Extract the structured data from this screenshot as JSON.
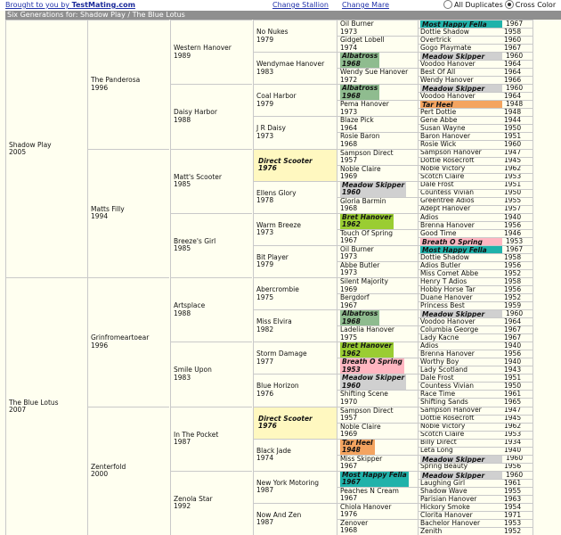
{
  "header": {
    "brand_prefix": "Brought to you by ",
    "brand_name": "TestMating.com",
    "change_stallion": "Change Stallion",
    "change_mare": "Change Mare",
    "opt_all_dupes": "All Duplicates",
    "opt_cross_color": "Cross Color",
    "title": "Six Generations for: Shadow Play / The Blue Lotus"
  },
  "gen1": [
    {
      "name": "Shadow Play",
      "year": "2005"
    },
    {
      "name": "The Blue Lotus",
      "year": "2007"
    }
  ],
  "gen2": [
    {
      "name": "The Panderosa",
      "year": "1996"
    },
    {
      "name": "Matts Filly",
      "year": "1994"
    },
    {
      "name": "Grinfromeartoear",
      "year": "1996"
    },
    {
      "name": "Zenterfold",
      "year": "2000"
    }
  ],
  "gen3": [
    {
      "name": "Western Hanover",
      "year": "1989"
    },
    {
      "name": "Daisy Harbor",
      "year": "1988"
    },
    {
      "name": "Matt's Scooter",
      "year": "1985"
    },
    {
      "name": "Breeze's Girl",
      "year": "1985"
    },
    {
      "name": "Artsplace",
      "year": "1988"
    },
    {
      "name": "Smile Upon",
      "year": "1983"
    },
    {
      "name": "In The Pocket",
      "year": "1987"
    },
    {
      "name": "Zenola Star",
      "year": "1992"
    }
  ],
  "gen4": [
    {
      "name": "No Nukes",
      "year": "1979"
    },
    {
      "name": "Wendymae Hanover",
      "year": "1983"
    },
    {
      "name": "Coal Harbor",
      "year": "1979"
    },
    {
      "name": "J R Daisy",
      "year": "1973"
    },
    {
      "name": "Direct Scooter",
      "year": "1976",
      "hl": "yel"
    },
    {
      "name": "Ellens Glory",
      "year": "1978"
    },
    {
      "name": "Warm Breeze",
      "year": "1973"
    },
    {
      "name": "Bit Player",
      "year": "1979"
    },
    {
      "name": "Abercrombie",
      "year": "1975"
    },
    {
      "name": "Miss Elvira",
      "year": "1982"
    },
    {
      "name": "Storm Damage",
      "year": "1977"
    },
    {
      "name": "Blue Horizon",
      "year": "1976"
    },
    {
      "name": "Direct Scooter",
      "year": "1976",
      "hl": "yel"
    },
    {
      "name": "Black Jade",
      "year": "1974"
    },
    {
      "name": "New York Motoring",
      "year": "1987"
    },
    {
      "name": "Now And Zen",
      "year": "1987"
    }
  ],
  "gen5": [
    {
      "name": "Oil Burner",
      "year": "1973"
    },
    {
      "name": "Gidget Lobell",
      "year": "1974"
    },
    {
      "name": "Albatross",
      "year": "1968",
      "hl": "g"
    },
    {
      "name": "Wendy Sue Hanover",
      "year": "1972"
    },
    {
      "name": "Albatross",
      "year": "1968",
      "hl": "g"
    },
    {
      "name": "Pema Hanover",
      "year": "1973"
    },
    {
      "name": "Blaze Pick",
      "year": "1964"
    },
    {
      "name": "Rosie Baron",
      "year": "1968"
    },
    {
      "name": "Sampson Direct",
      "year": "1957"
    },
    {
      "name": "Noble Claire",
      "year": "1969"
    },
    {
      "name": "Meadow Skipper",
      "year": "1960",
      "hl": "gr"
    },
    {
      "name": "Gloria Barmin",
      "year": "1968"
    },
    {
      "name": "Bret Hanover",
      "year": "1962",
      "hl": "gb"
    },
    {
      "name": "Touch Of Spring",
      "year": "1967"
    },
    {
      "name": "Oil Burner",
      "year": "1973"
    },
    {
      "name": "Abbe Butler",
      "year": "1973"
    },
    {
      "name": "Silent Majority",
      "year": "1969"
    },
    {
      "name": "Bergdorf",
      "year": "1967"
    },
    {
      "name": "Albatross",
      "year": "1968",
      "hl": "g"
    },
    {
      "name": "Ladelia Hanover",
      "year": "1975"
    },
    {
      "name": "Bret Hanover",
      "year": "1962",
      "hl": "gb"
    },
    {
      "name": "Breath O Spring",
      "year": "1953",
      "hl": "p"
    },
    {
      "name": "Meadow Skipper",
      "year": "1960",
      "hl": "gr"
    },
    {
      "name": "Shifting Scene",
      "year": "1970"
    },
    {
      "name": "Sampson Direct",
      "year": "1957"
    },
    {
      "name": "Noble Claire",
      "year": "1969"
    },
    {
      "name": "Tar Heel",
      "year": "1948",
      "hl": "o"
    },
    {
      "name": "Miss Skipper",
      "year": "1967"
    },
    {
      "name": "Most Happy Fella",
      "year": "1967",
      "hl": "t"
    },
    {
      "name": "Peaches N Cream",
      "year": "1967"
    },
    {
      "name": "Chiola Hanover",
      "year": "1976"
    },
    {
      "name": "Zenover",
      "year": "1968"
    }
  ],
  "gen6": [
    {
      "name": "Most Happy Fella",
      "year": "1967",
      "hl": "t"
    },
    {
      "name": "Dottie Shadow",
      "year": "1958"
    },
    {
      "name": "Overtrick",
      "year": "1960"
    },
    {
      "name": "Gogo Playmate",
      "year": "1967"
    },
    {
      "name": "Meadow Skipper",
      "year": "1960",
      "hl": "gr"
    },
    {
      "name": "Voodoo Hanover",
      "year": "1964"
    },
    {
      "name": "Best Of All",
      "year": "1964"
    },
    {
      "name": "Wendy Hanover",
      "year": "1966"
    },
    {
      "name": "Meadow Skipper",
      "year": "1960",
      "hl": "gr"
    },
    {
      "name": "Voodoo Hanover",
      "year": "1964"
    },
    {
      "name": "Tar Heel",
      "year": "1948",
      "hl": "o"
    },
    {
      "name": "Pert Dottie",
      "year": "1948"
    },
    {
      "name": "Gene Abbe",
      "year": "1944"
    },
    {
      "name": "Susan Wayne",
      "year": "1950"
    },
    {
      "name": "Baron Hanover",
      "year": "1951"
    },
    {
      "name": "Rosie Wick",
      "year": "1960"
    },
    {
      "name": "Sampson Hanover",
      "year": "1947"
    },
    {
      "name": "Dottie Rosecroft",
      "year": "1945"
    },
    {
      "name": "Noble Victory",
      "year": "1962"
    },
    {
      "name": "Scotch Claire",
      "year": "1953"
    },
    {
      "name": "Dale Frost",
      "year": "1951"
    },
    {
      "name": "Countess Vivian",
      "year": "1950"
    },
    {
      "name": "Greentree Adios",
      "year": "1955"
    },
    {
      "name": "Adept Hanover",
      "year": "1957"
    },
    {
      "name": "Adios",
      "year": "1940"
    },
    {
      "name": "Brenna Hanover",
      "year": "1956"
    },
    {
      "name": "Good Time",
      "year": "1946"
    },
    {
      "name": "Breath O Spring",
      "year": "1953",
      "hl": "p"
    },
    {
      "name": "Most Happy Fella",
      "year": "1967",
      "hl": "t"
    },
    {
      "name": "Dottie Shadow",
      "year": "1958"
    },
    {
      "name": "Adios Butler",
      "year": "1956"
    },
    {
      "name": "Miss Comet Abbe",
      "year": "1952"
    },
    {
      "name": "Henry T Adios",
      "year": "1958"
    },
    {
      "name": "Hobby Horse Tar",
      "year": "1956"
    },
    {
      "name": "Duane Hanover",
      "year": "1952"
    },
    {
      "name": "Princess Best",
      "year": "1959"
    },
    {
      "name": "Meadow Skipper",
      "year": "1960",
      "hl": "gr"
    },
    {
      "name": "Voodoo Hanover",
      "year": "1964"
    },
    {
      "name": "Columbia George",
      "year": "1967"
    },
    {
      "name": "Lady Kacne",
      "year": "1967"
    },
    {
      "name": "Adios",
      "year": "1940"
    },
    {
      "name": "Brenna Hanover",
      "year": "1956"
    },
    {
      "name": "Worthy Boy",
      "year": "1940"
    },
    {
      "name": "Lady Scotland",
      "year": "1943"
    },
    {
      "name": "Dale Frost",
      "year": "1951"
    },
    {
      "name": "Countess Vivian",
      "year": "1950"
    },
    {
      "name": "Race Time",
      "year": "1961"
    },
    {
      "name": "Shifting Sands",
      "year": "1965"
    },
    {
      "name": "Sampson Hanover",
      "year": "1947"
    },
    {
      "name": "Dottie Rosecroft",
      "year": "1945"
    },
    {
      "name": "Noble Victory",
      "year": "1962"
    },
    {
      "name": "Scotch Claire",
      "year": "1953"
    },
    {
      "name": "Billy Direct",
      "year": "1934"
    },
    {
      "name": "Leta Long",
      "year": "1940"
    },
    {
      "name": "Meadow Skipper",
      "year": "1960",
      "hl": "gr"
    },
    {
      "name": "Spring Beauty",
      "year": "1956"
    },
    {
      "name": "Meadow Skipper",
      "year": "1960",
      "hl": "gr"
    },
    {
      "name": "Laughing Girl",
      "year": "1961"
    },
    {
      "name": "Shadow Wave",
      "year": "1955"
    },
    {
      "name": "Parisian Hanover",
      "year": "1963"
    },
    {
      "name": "Hickory Smoke",
      "year": "1954"
    },
    {
      "name": "Clorita Hanover",
      "year": "1971"
    },
    {
      "name": "Bachelor Hanover",
      "year": "1953"
    },
    {
      "name": "Zenith",
      "year": "1952"
    }
  ]
}
